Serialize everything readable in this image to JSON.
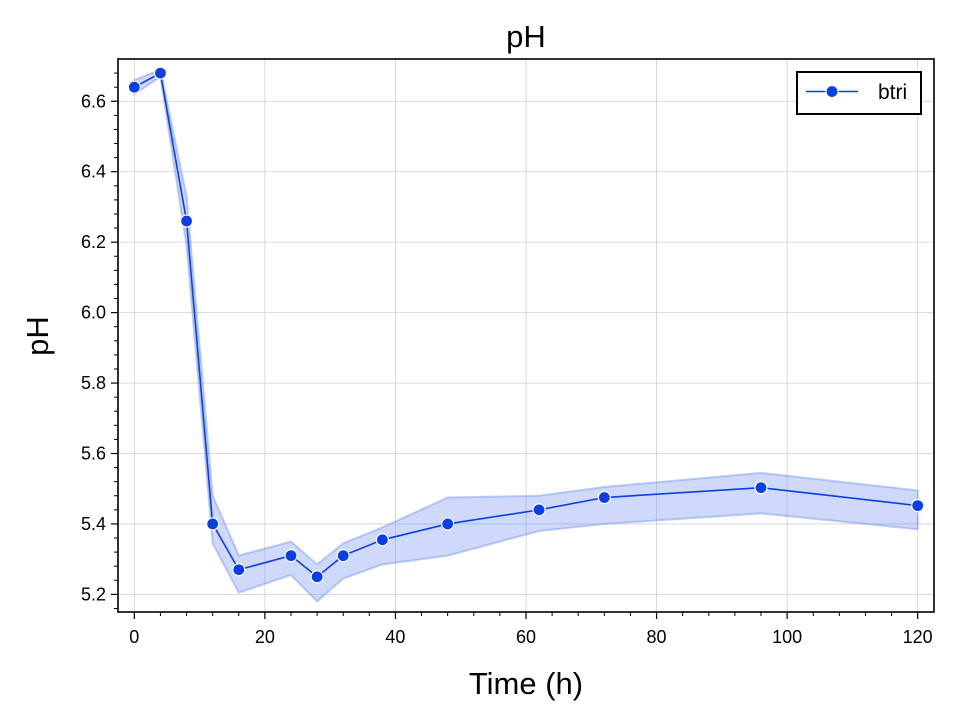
{
  "chart_data": {
    "type": "line",
    "title": "pH",
    "xlabel": "Time (h)",
    "ylabel": "pH",
    "xlim": [
      -2.5,
      122.5
    ],
    "ylim": [
      5.15,
      6.72
    ],
    "xticks": [
      0,
      20,
      40,
      60,
      80,
      100,
      120
    ],
    "yticks": [
      5.2,
      5.4,
      5.6,
      5.8,
      6.0,
      6.2,
      6.4,
      6.6
    ],
    "grid": true,
    "legend_position": "top-right",
    "colors": {
      "line": "#0a3ee8",
      "band": "#7393f5",
      "marker_edge": "#ffffff"
    },
    "series": [
      {
        "name": "btri",
        "x": [
          0,
          4,
          8,
          12,
          16,
          24,
          28,
          32,
          38,
          48,
          62,
          72,
          96,
          120
        ],
        "y": [
          6.64,
          6.68,
          6.26,
          5.4,
          5.27,
          5.31,
          5.25,
          5.31,
          5.355,
          5.4,
          5.44,
          5.475,
          5.503,
          5.452
        ],
        "ci_lower": [
          6.62,
          6.67,
          6.19,
          5.345,
          5.205,
          5.255,
          5.18,
          5.245,
          5.285,
          5.31,
          5.38,
          5.4,
          5.43,
          5.385
        ],
        "ci_upper": [
          6.66,
          6.69,
          6.33,
          5.48,
          5.31,
          5.35,
          5.285,
          5.345,
          5.39,
          5.475,
          5.48,
          5.505,
          5.545,
          5.495
        ]
      }
    ]
  }
}
